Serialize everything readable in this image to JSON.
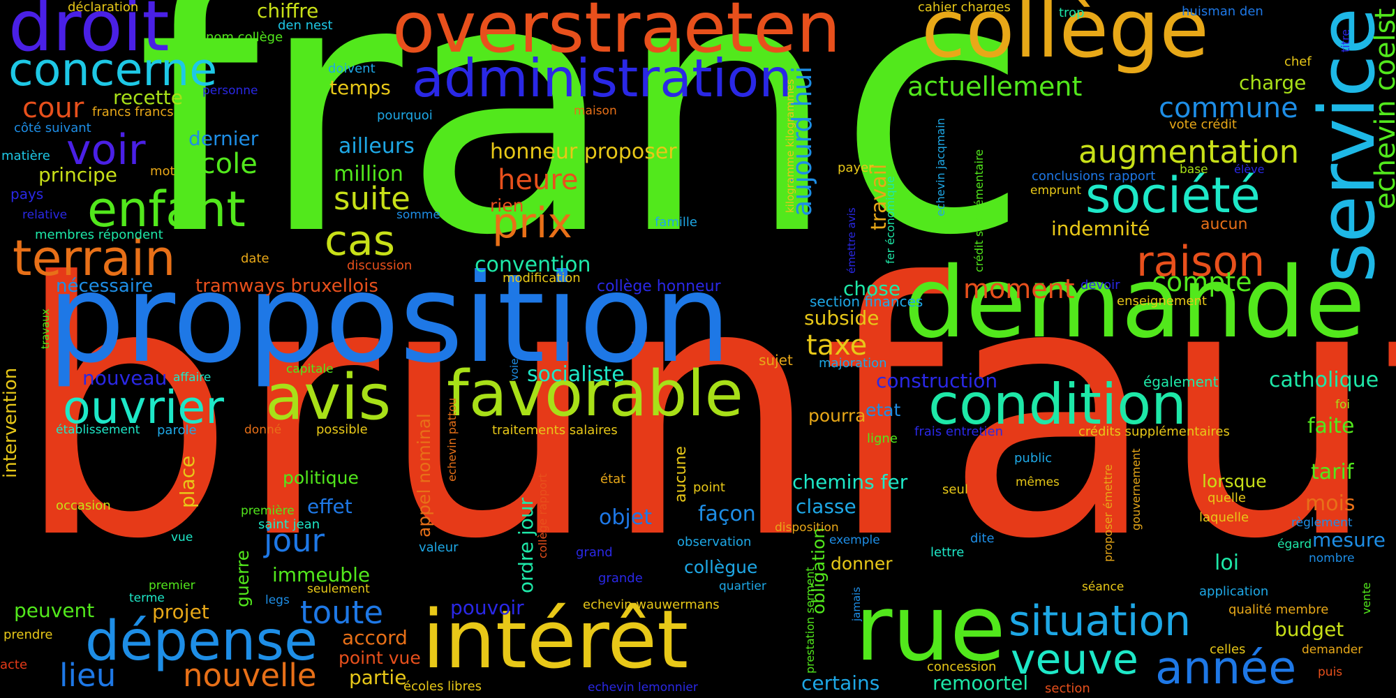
{
  "background": "#000000",
  "words": [
    {
      "text": "franc",
      "color": "#52e81c"
    },
    {
      "text": "brunfaut",
      "color": "#e63a18"
    },
    {
      "text": "proposition",
      "color": "#1e78e6"
    },
    {
      "text": "demande",
      "color": "#52e81c"
    },
    {
      "text": "collège",
      "color": "#e8a818"
    },
    {
      "text": "overstraeten",
      "color": "#e8501c"
    },
    {
      "text": "droit",
      "color": "#4a20e6"
    },
    {
      "text": "service",
      "color": "#1eb8e6"
    },
    {
      "text": "intérêt",
      "color": "#e8c818"
    },
    {
      "text": "favorable",
      "color": "#a8e018"
    },
    {
      "text": "avis",
      "color": "#a8e018"
    },
    {
      "text": "rue",
      "color": "#52e81c"
    },
    {
      "text": "condition",
      "color": "#1ee8a8"
    },
    {
      "text": "dépense",
      "color": "#1e8ee6"
    },
    {
      "text": "ouvrier",
      "color": "#1ee8c8"
    },
    {
      "text": "administration",
      "color": "#2a28e6"
    },
    {
      "text": "concerne",
      "color": "#1ec8e6"
    },
    {
      "text": "enfant",
      "color": "#52e81c"
    },
    {
      "text": "terrain",
      "color": "#e87018"
    },
    {
      "text": "société",
      "color": "#1ee8c8"
    },
    {
      "text": "situation",
      "color": "#1ea8e6"
    },
    {
      "text": "année",
      "color": "#1e78e6"
    },
    {
      "text": "veuve",
      "color": "#1ee8c8"
    },
    {
      "text": "voir",
      "color": "#4a20e6"
    },
    {
      "text": "prix",
      "color": "#e87018"
    },
    {
      "text": "cas",
      "color": "#c8e018"
    },
    {
      "text": "raison",
      "color": "#e8501c"
    },
    {
      "text": "augmentation",
      "color": "#c8e018"
    },
    {
      "text": "actuellement",
      "color": "#52e81c"
    },
    {
      "text": "commune",
      "color": "#1e8ee6"
    },
    {
      "text": "echevin coelst",
      "color": "#52e81c"
    },
    {
      "text": "aujourd hui",
      "color": "#1e8ee6"
    },
    {
      "text": "nouvelle",
      "color": "#e87018"
    },
    {
      "text": "lieu",
      "color": "#1e78e6"
    },
    {
      "text": "toute",
      "color": "#1e78e6"
    },
    {
      "text": "jour",
      "color": "#1e78e6"
    },
    {
      "text": "suite",
      "color": "#c8e018"
    },
    {
      "text": "heure",
      "color": "#e8501c"
    },
    {
      "text": "école",
      "color": "#52e81c"
    },
    {
      "text": "cour",
      "color": "#e8501c"
    },
    {
      "text": "moment",
      "color": "#e8501c"
    },
    {
      "text": "compte",
      "color": "#52e81c"
    },
    {
      "text": "taxe",
      "color": "#e8c818"
    },
    {
      "text": "catholique",
      "color": "#1ee8a8"
    },
    {
      "text": "socialiste",
      "color": "#1ee8c8"
    },
    {
      "text": "chiffre",
      "color": "#c8e018"
    },
    {
      "text": "recette",
      "color": "#a8e018"
    },
    {
      "text": "dernier",
      "color": "#1e8ee6"
    },
    {
      "text": "principe",
      "color": "#c8e018"
    },
    {
      "text": "temps",
      "color": "#e8c818"
    },
    {
      "text": "ailleurs",
      "color": "#1ea8e6"
    },
    {
      "text": "million",
      "color": "#52e81c"
    },
    {
      "text": "honneur proposer",
      "color": "#e8c818"
    },
    {
      "text": "convention",
      "color": "#1ee8a8"
    },
    {
      "text": "indemnité",
      "color": "#e8c818"
    },
    {
      "text": "nécessaire",
      "color": "#1e8ee6"
    },
    {
      "text": "tramways bruxellois",
      "color": "#e8501c"
    },
    {
      "text": "collège honneur",
      "color": "#2a28e6"
    },
    {
      "text": "chose",
      "color": "#1ee8a8"
    },
    {
      "text": "subside",
      "color": "#e8c818"
    },
    {
      "text": "travail",
      "color": "#e8a818"
    },
    {
      "text": "nouveau",
      "color": "#2a28e6"
    },
    {
      "text": "construction",
      "color": "#2a28e6"
    },
    {
      "text": "etat",
      "color": "#1e8ee6"
    },
    {
      "text": "pourra",
      "color": "#e8a818"
    },
    {
      "text": "faite",
      "color": "#52e81c"
    },
    {
      "text": "tarif",
      "color": "#52e81c"
    },
    {
      "text": "charge",
      "color": "#a8e018"
    },
    {
      "text": "chemins fer",
      "color": "#1ee8c8"
    },
    {
      "text": "classe",
      "color": "#1ea8e6"
    },
    {
      "text": "lorsque",
      "color": "#c8e018"
    },
    {
      "text": "mois",
      "color": "#e87018"
    },
    {
      "text": "mesure",
      "color": "#1e8ee6"
    },
    {
      "text": "loi",
      "color": "#1ee8a8"
    },
    {
      "text": "budget",
      "color": "#c8e018"
    },
    {
      "text": "façon",
      "color": "#1e8ee6"
    },
    {
      "text": "objet",
      "color": "#1e78e6"
    },
    {
      "text": "effet",
      "color": "#1e78e6"
    },
    {
      "text": "politique",
      "color": "#52e81c"
    },
    {
      "text": "immeuble",
      "color": "#52e81c"
    },
    {
      "text": "projet",
      "color": "#e8a818"
    },
    {
      "text": "peuvent",
      "color": "#52e81c"
    },
    {
      "text": "accord",
      "color": "#e87018"
    },
    {
      "text": "point vue",
      "color": "#e8501c"
    },
    {
      "text": "partie",
      "color": "#e8c818"
    },
    {
      "text": "pouvoir",
      "color": "#2a28e6"
    },
    {
      "text": "remoortel",
      "color": "#1ee8a8"
    },
    {
      "text": "certains",
      "color": "#1ea8e6"
    },
    {
      "text": "donner",
      "color": "#e8c818"
    },
    {
      "text": "collègue",
      "color": "#1ea8e6"
    },
    {
      "text": "ordre jour",
      "color": "#1ee8a8"
    },
    {
      "text": "appel nominal",
      "color": "#e87018"
    },
    {
      "text": "guerre",
      "color": "#52e81c"
    },
    {
      "text": "place",
      "color": "#e8c818"
    },
    {
      "text": "intervention",
      "color": "#e8c818"
    },
    {
      "text": "aucune",
      "color": "#e8c818"
    },
    {
      "text": "obligation",
      "color": "#52e81c"
    },
    {
      "text": "déclaration",
      "color": "#e8c818"
    },
    {
      "text": "nom collège",
      "color": "#52e81c"
    },
    {
      "text": "den nest",
      "color": "#1ec8e6"
    },
    {
      "text": "doivent",
      "color": "#1ea8e6"
    },
    {
      "text": "personne",
      "color": "#2a28e6"
    },
    {
      "text": "francs francs",
      "color": "#e8a818"
    },
    {
      "text": "côté suivant",
      "color": "#1e8ee6"
    },
    {
      "text": "matière",
      "color": "#1ec8e6"
    },
    {
      "text": "mot",
      "color": "#e8a818"
    },
    {
      "text": "pays",
      "color": "#2a28e6"
    },
    {
      "text": "relative",
      "color": "#2a28e6"
    },
    {
      "text": "membres répondent",
      "color": "#1ee8a8"
    },
    {
      "text": "date",
      "color": "#e8a818"
    },
    {
      "text": "discussion",
      "color": "#e8501c"
    },
    {
      "text": "modification",
      "color": "#e8c818"
    },
    {
      "text": "pourquoi",
      "color": "#1ea8e6"
    },
    {
      "text": "maison",
      "color": "#e87018"
    },
    {
      "text": "kilogramme kilogrammes",
      "color": "#e8c818"
    },
    {
      "text": "rien",
      "color": "#e8501c"
    },
    {
      "text": "somme",
      "color": "#1e8ee6"
    },
    {
      "text": "famille",
      "color": "#1ea8e6"
    },
    {
      "text": "payer",
      "color": "#e8c818"
    },
    {
      "text": "émettre avis",
      "color": "#2a28e6"
    },
    {
      "text": "fer économique",
      "color": "#1ee8a8"
    },
    {
      "text": "section finances",
      "color": "#1ea8e6"
    },
    {
      "text": "majoration",
      "color": "#1ea8e6"
    },
    {
      "text": "sujet",
      "color": "#e8a818"
    },
    {
      "text": "cahier charges",
      "color": "#e8c818"
    },
    {
      "text": "trop",
      "color": "#1ee8a8"
    },
    {
      "text": "huisman den",
      "color": "#1e78e6"
    },
    {
      "text": "titre",
      "color": "#2a28e6"
    },
    {
      "text": "chef",
      "color": "#e8c818"
    },
    {
      "text": "vote crédit",
      "color": "#e8a818"
    },
    {
      "text": "echevin jacqmain",
      "color": "#1ea8e6"
    },
    {
      "text": "crédit supplémentaire",
      "color": "#52e81c"
    },
    {
      "text": "conclusions rapport",
      "color": "#1e78e6"
    },
    {
      "text": "emprunt",
      "color": "#e8c818"
    },
    {
      "text": "base",
      "color": "#a8e018"
    },
    {
      "text": "élève",
      "color": "#2a28e6"
    },
    {
      "text": "aucun",
      "color": "#e87018"
    },
    {
      "text": "devoir",
      "color": "#2a28e6"
    },
    {
      "text": "enseignement",
      "color": "#e8c818"
    },
    {
      "text": "également",
      "color": "#1ee8a8"
    },
    {
      "text": "foi",
      "color": "#a8e018"
    },
    {
      "text": "crédits supplémentaires",
      "color": "#e8c818"
    },
    {
      "text": "frais entretien",
      "color": "#2a28e6"
    },
    {
      "text": "ligne",
      "color": "#52e81c"
    },
    {
      "text": "public",
      "color": "#1ea8e6"
    },
    {
      "text": "mêmes",
      "color": "#e8c818"
    },
    {
      "text": "seul",
      "color": "#e8c818"
    },
    {
      "text": "gouvernement",
      "color": "#e8a818"
    },
    {
      "text": "proposer émettre",
      "color": "#e8a818"
    },
    {
      "text": "quelle",
      "color": "#e8c818"
    },
    {
      "text": "laquelle",
      "color": "#e8c818"
    },
    {
      "text": "règlement",
      "color": "#1e8ee6"
    },
    {
      "text": "égard",
      "color": "#1ee8a8"
    },
    {
      "text": "nombre",
      "color": "#1e8ee6"
    },
    {
      "text": "vente",
      "color": "#52e81c"
    },
    {
      "text": "dite",
      "color": "#1e8ee6"
    },
    {
      "text": "lettre",
      "color": "#1ee8c8"
    },
    {
      "text": "séance",
      "color": "#e8c818"
    },
    {
      "text": "application",
      "color": "#1ea8e6"
    },
    {
      "text": "qualité membre",
      "color": "#e8a818"
    },
    {
      "text": "celles",
      "color": "#e8c818"
    },
    {
      "text": "demander",
      "color": "#e8a818"
    },
    {
      "text": "puis",
      "color": "#e8501c"
    },
    {
      "text": "section",
      "color": "#e8501c"
    },
    {
      "text": "concession",
      "color": "#e8c818"
    },
    {
      "text": "état",
      "color": "#e8a818"
    },
    {
      "text": "point",
      "color": "#e8c818"
    },
    {
      "text": "disposition",
      "color": "#e8a818"
    },
    {
      "text": "exemple",
      "color": "#1e8ee6"
    },
    {
      "text": "observation",
      "color": "#1ea8e6"
    },
    {
      "text": "quartier",
      "color": "#1ea8e6"
    },
    {
      "text": "jamais",
      "color": "#1e8ee6"
    },
    {
      "text": "prestation serment",
      "color": "#52e81c"
    },
    {
      "text": "echevin wauwermans",
      "color": "#e8c818"
    },
    {
      "text": "grande",
      "color": "#2a28e6"
    },
    {
      "text": "grand",
      "color": "#2a28e6"
    },
    {
      "text": "valeur",
      "color": "#1ea8e6"
    },
    {
      "text": "collège rapport",
      "color": "#e8501c"
    },
    {
      "text": "echevin pattou",
      "color": "#e87018"
    },
    {
      "text": "voie",
      "color": "#1e8ee6"
    },
    {
      "text": "traitements salaires",
      "color": "#e8c818"
    },
    {
      "text": "possible",
      "color": "#e8c818"
    },
    {
      "text": "donné",
      "color": "#e87018"
    },
    {
      "text": "parole",
      "color": "#1ea8e6"
    },
    {
      "text": "établissement",
      "color": "#1ee8c8"
    },
    {
      "text": "affaire",
      "color": "#1ee8c8"
    },
    {
      "text": "capitale",
      "color": "#52e81c"
    },
    {
      "text": "travaux",
      "color": "#52e81c"
    },
    {
      "text": "occasion",
      "color": "#c8e018"
    },
    {
      "text": "vue",
      "color": "#1ee8c8"
    },
    {
      "text": "première",
      "color": "#52e81c"
    },
    {
      "text": "saint jean",
      "color": "#1ee8c8"
    },
    {
      "text": "legs",
      "color": "#1e8ee6"
    },
    {
      "text": "premier",
      "color": "#52e81c"
    },
    {
      "text": "terme",
      "color": "#1ee8c8"
    },
    {
      "text": "seulement",
      "color": "#e8c818"
    },
    {
      "text": "prendre",
      "color": "#e8c818"
    },
    {
      "text": "acte",
      "color": "#e63a18"
    },
    {
      "text": "écoles libres",
      "color": "#e8c818"
    },
    {
      "text": "echevin lemonnier",
      "color": "#2a28e6"
    }
  ]
}
